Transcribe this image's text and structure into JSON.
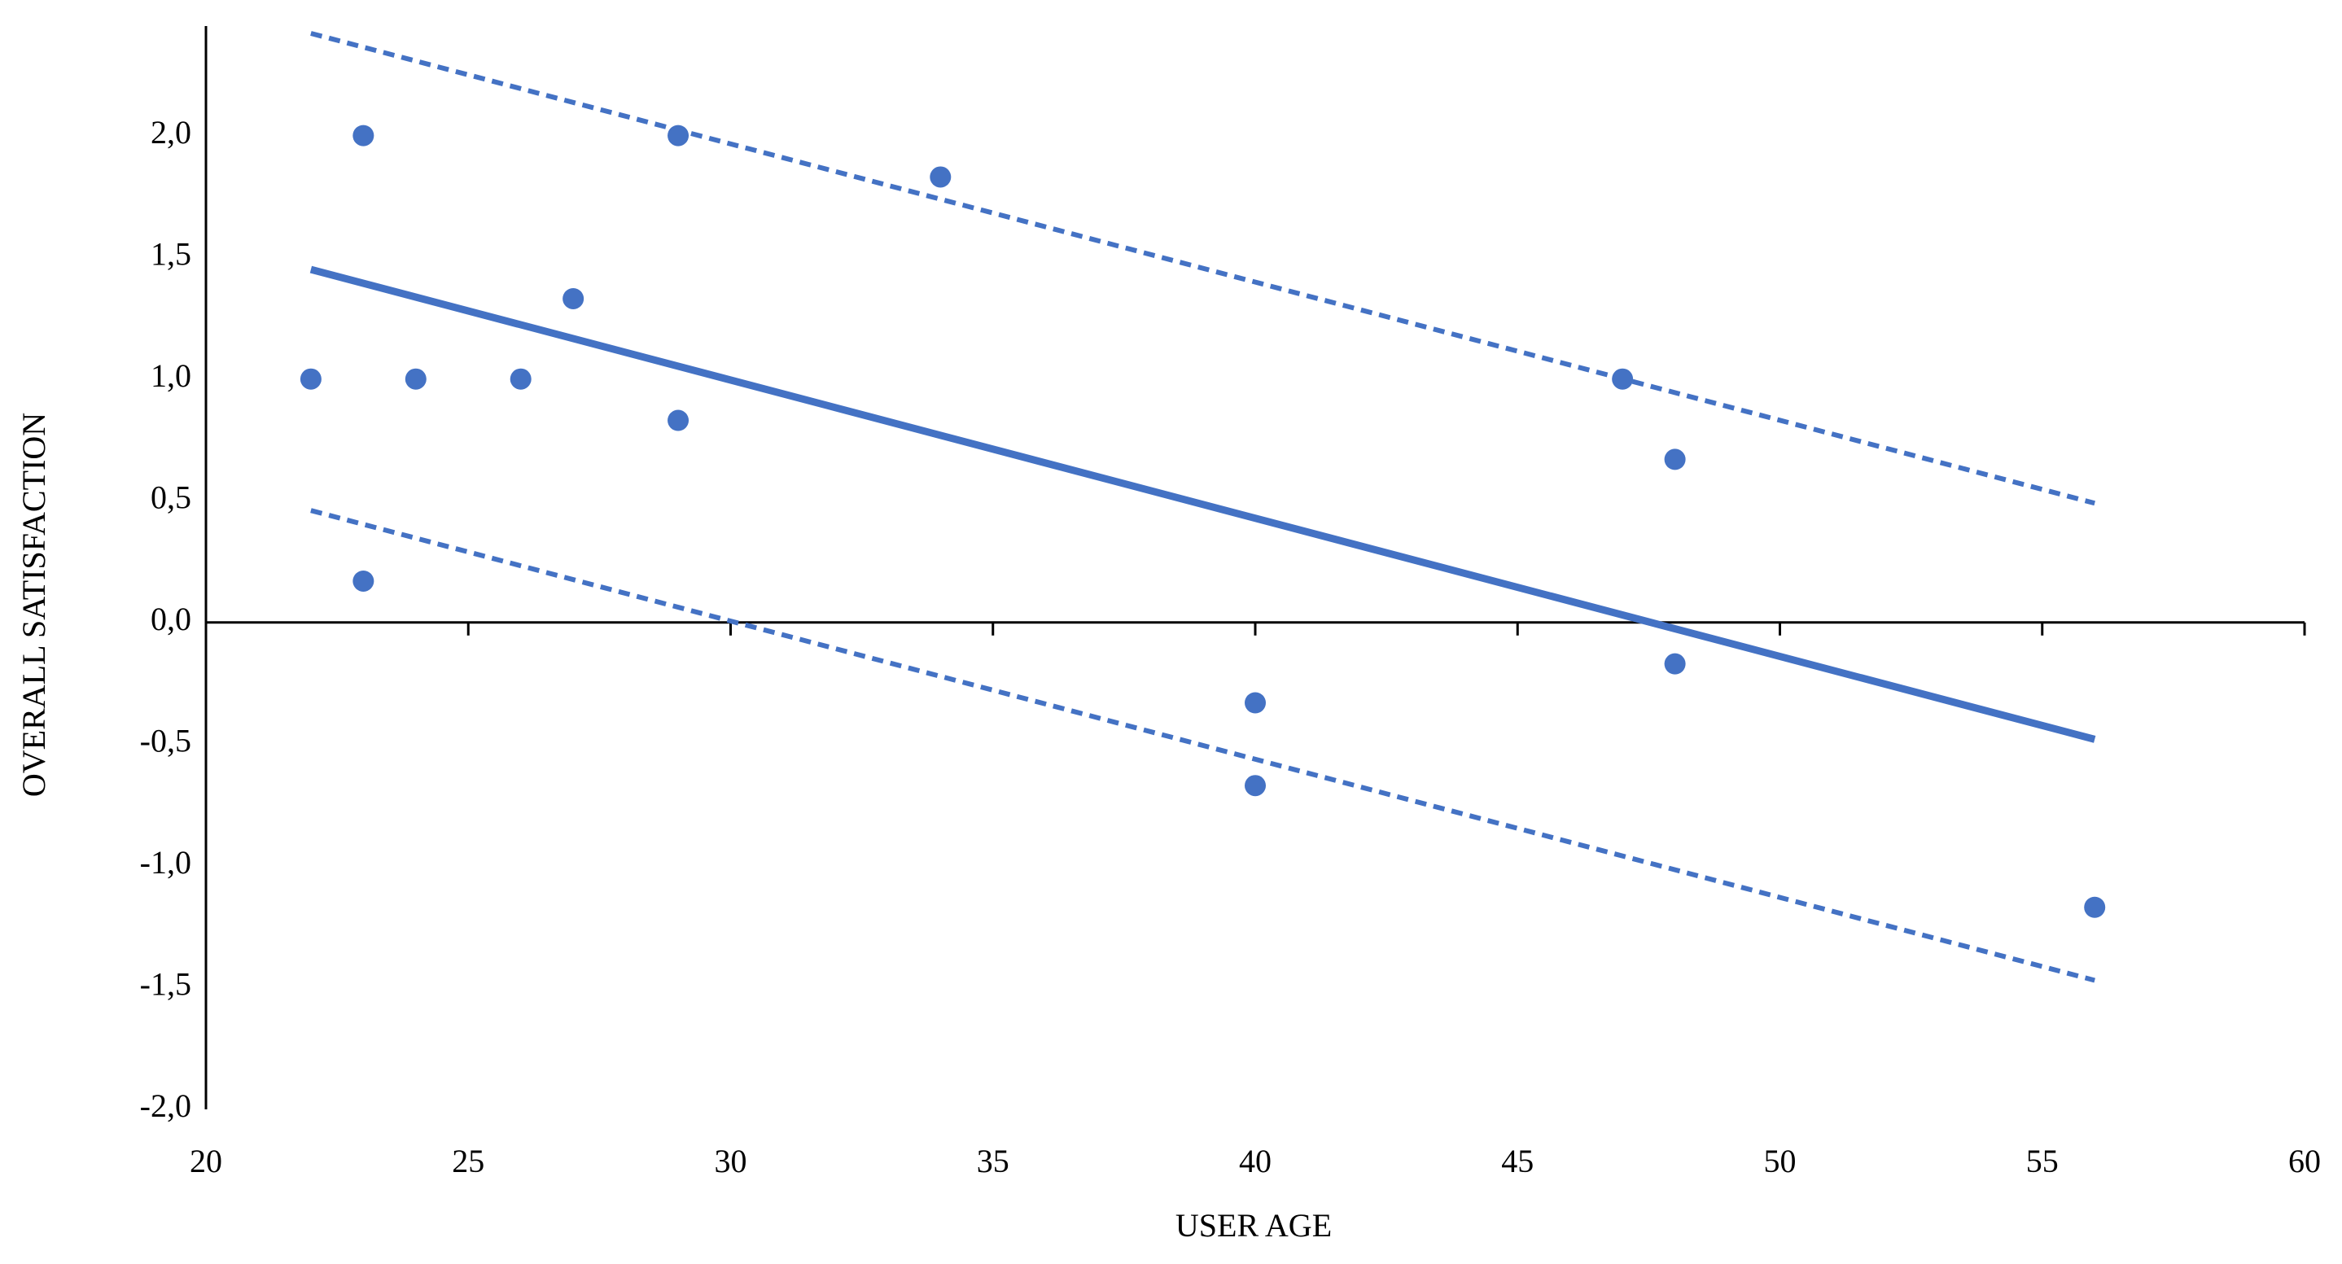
{
  "chart_data": {
    "type": "scatter",
    "x_label": "USER  AGE",
    "y_label": "OVERALL SATISFACTION",
    "color": "#4472c4",
    "x": [
      22,
      23,
      23,
      24,
      26,
      27,
      29,
      29,
      34,
      40,
      40,
      47,
      48,
      48,
      56
    ],
    "values": [
      1,
      2,
      0.17,
      1,
      1,
      1.33,
      2,
      0.83,
      1.83,
      -0.33,
      -0.67,
      1,
      0.67,
      -0.17,
      -1.17
    ],
    "trend_lines": [
      {
        "x": [
          22,
          56
        ],
        "values": [
          1.45,
          -0.48
        ],
        "style": "solid"
      },
      {
        "x": [
          22,
          56
        ],
        "values": [
          2.42,
          0.49
        ],
        "style": "dashed"
      },
      {
        "x": [
          22,
          56
        ],
        "values": [
          0.46,
          -1.47
        ],
        "style": "dashed"
      }
    ],
    "xlim": [
      20,
      60
    ],
    "xticks": [
      20,
      25,
      30,
      35,
      40,
      45,
      50,
      55,
      60
    ],
    "ylim": [
      -2,
      2.45
    ],
    "yticks": [
      {
        "value": -2,
        "label": "-2,0"
      },
      {
        "value": -1.5,
        "label": "-1,5"
      },
      {
        "value": -1,
        "label": "-1,0"
      },
      {
        "value": -0.5,
        "label": "-0,5"
      },
      {
        "value": 0,
        "label": "0,0"
      },
      {
        "value": 0.5,
        "label": "0,5"
      },
      {
        "value": 1,
        "label": "1,0"
      },
      {
        "value": 1.5,
        "label": "1,5"
      },
      {
        "value": 2,
        "label": "2,0"
      }
    ]
  }
}
